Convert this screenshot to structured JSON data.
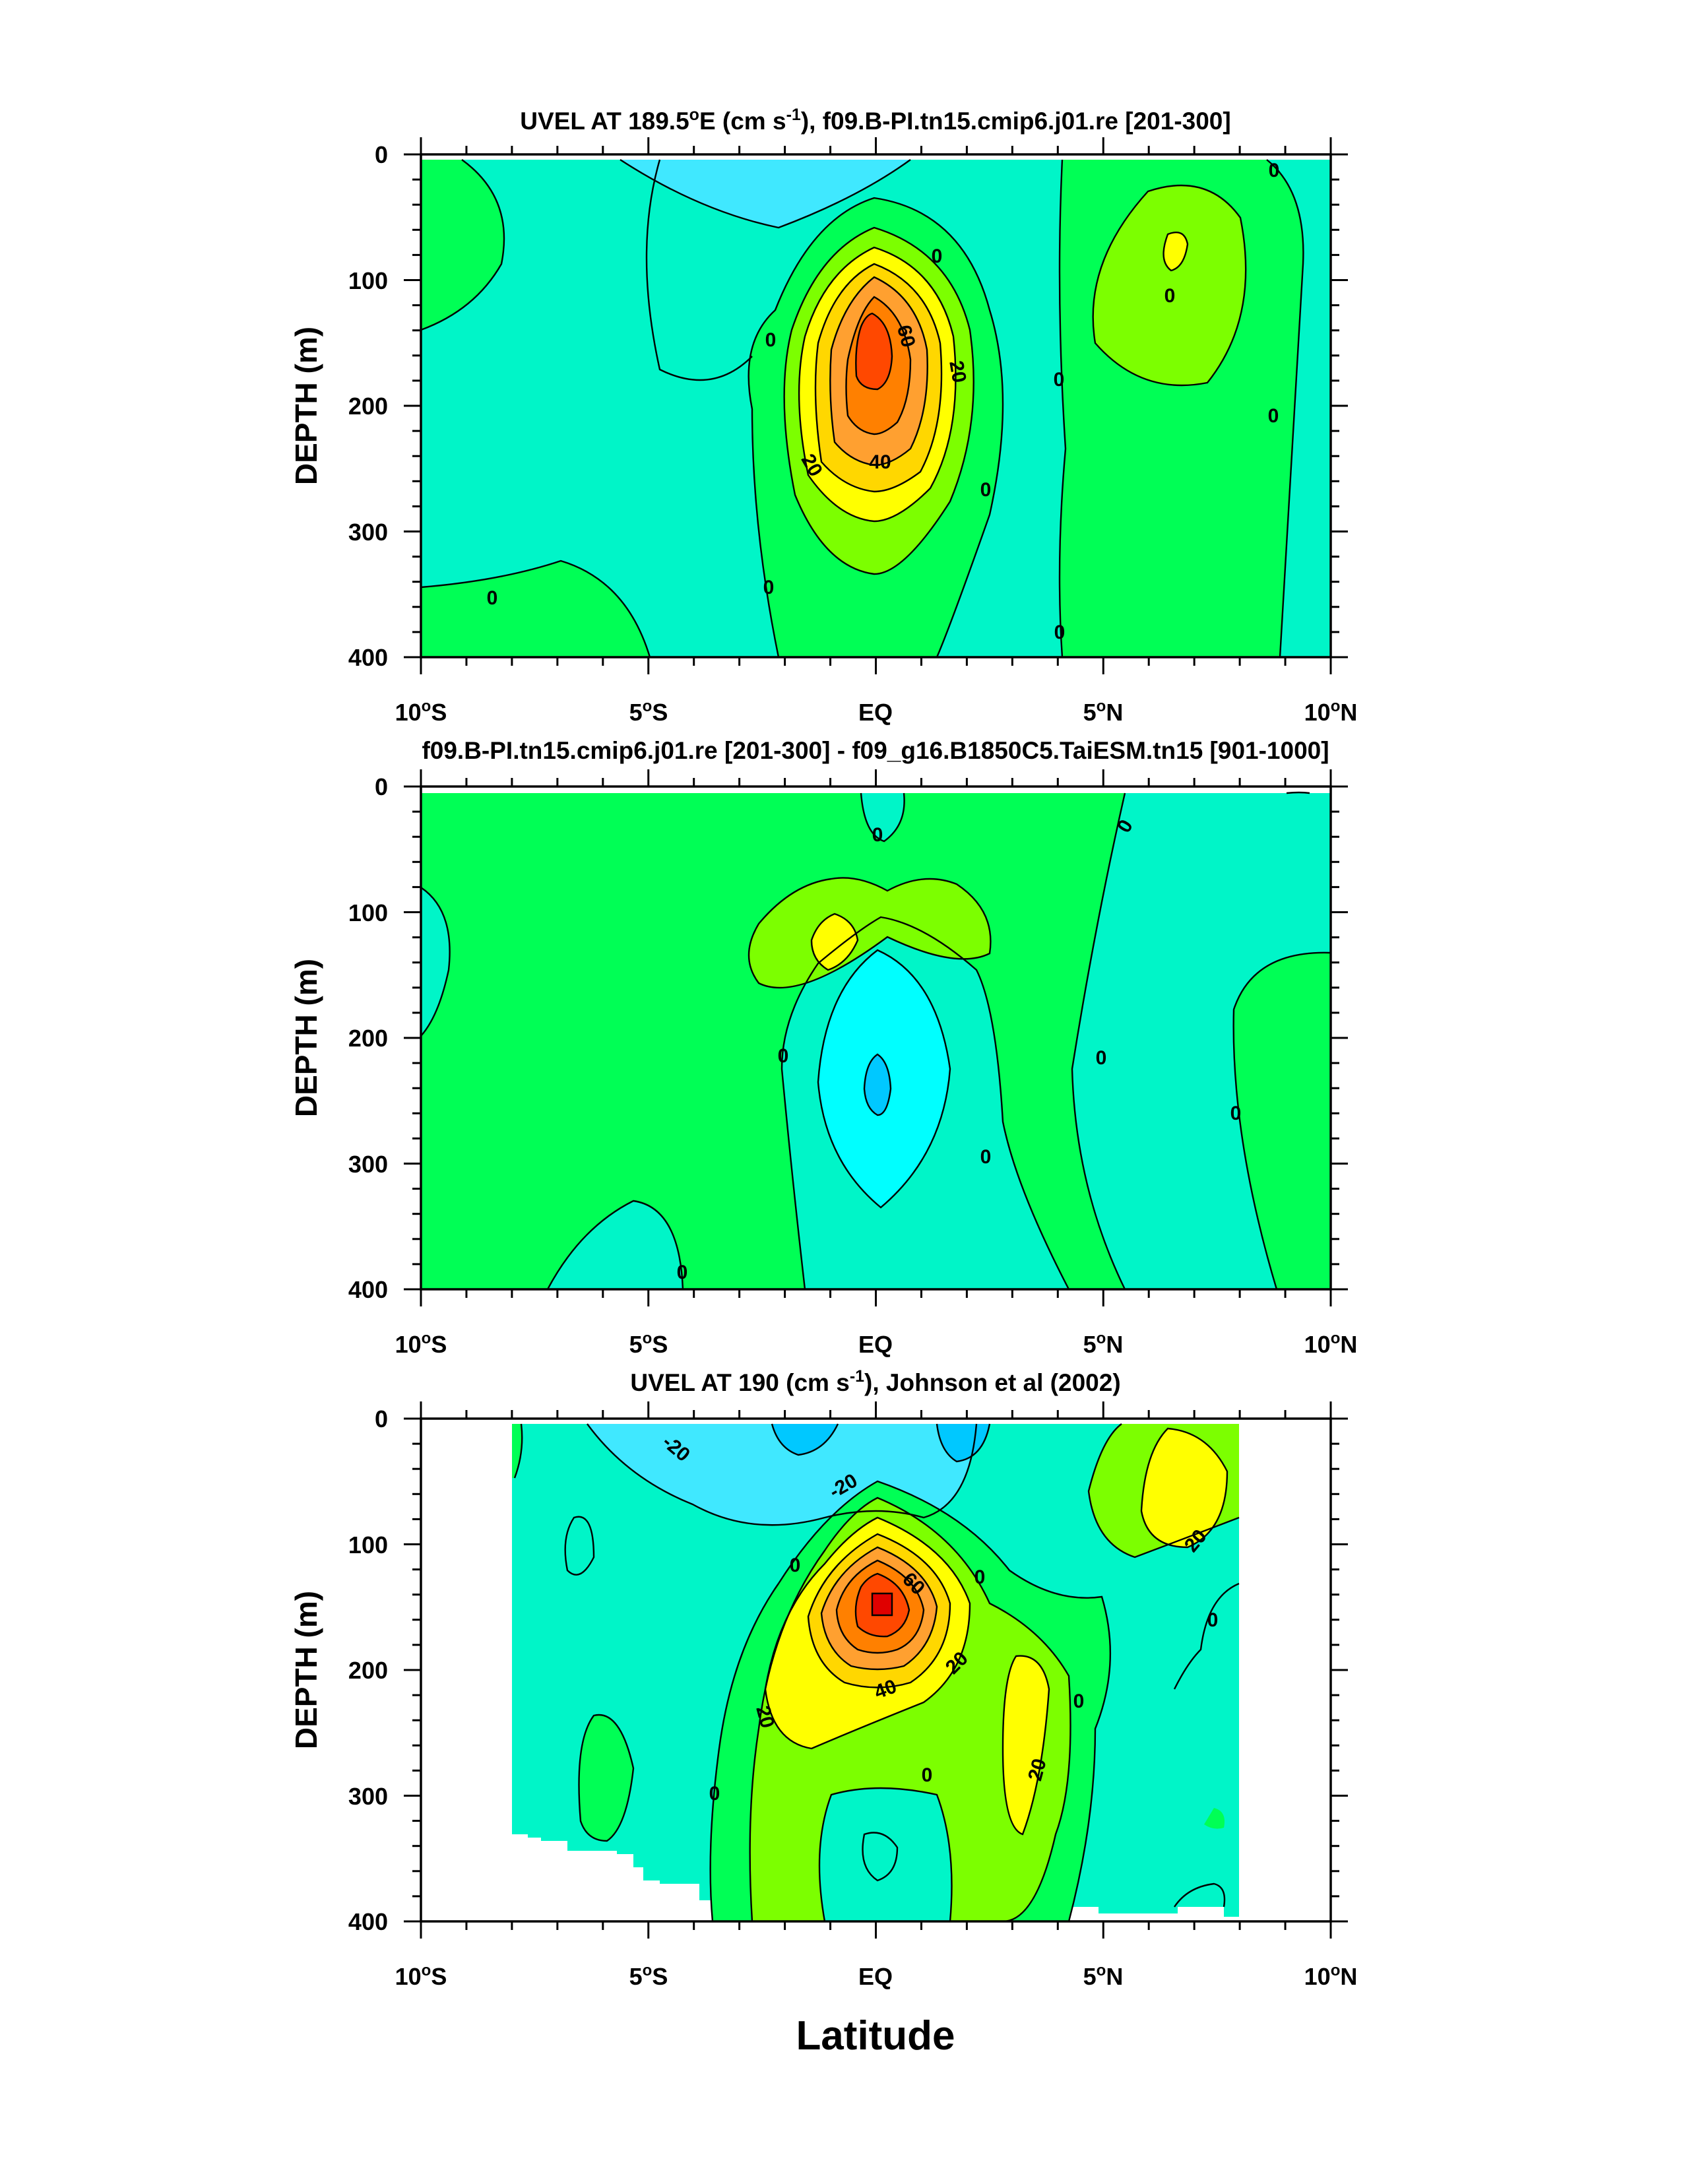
{
  "chart_data": [
    {
      "type": "contour",
      "title_main": "UVEL AT 189.5",
      "title_sup1": "o",
      "title_mid": "E (cm s",
      "title_sup2": "-1",
      "title_end": "), f09.B-PI.tn15.cmip6.j01.re [201-300]",
      "ylabel": "DEPTH (m)",
      "xlabel": "",
      "xlim": [
        -10,
        10
      ],
      "ylim": [
        400,
        0
      ],
      "yticks": [
        "0",
        "100",
        "200",
        "300",
        "400"
      ],
      "xticks": [
        {
          "main": "10",
          "sup": "o",
          "tail": "S"
        },
        {
          "main": "5",
          "sup": "o",
          "tail": "S"
        },
        {
          "main": "EQ",
          "sup": "",
          "tail": ""
        },
        {
          "main": "5",
          "sup": "o",
          "tail": "N"
        },
        {
          "main": "10",
          "sup": "o",
          "tail": "N"
        }
      ],
      "contour_interval": 10,
      "contour_labels": [
        "0",
        "0",
        "0",
        "0",
        "0",
        "0",
        "0",
        "0",
        "0",
        "0",
        "60",
        "20",
        "20",
        "40"
      ],
      "jet_core": {
        "latitude": 0,
        "depth": 160,
        "max_value": 70
      }
    },
    {
      "type": "contour",
      "title": "f09.B-PI.tn15.cmip6.j01.re [201-300] - f09_g16.B1850C5.TaiESM.tn15 [901-1000]",
      "ylabel": "DEPTH (m)",
      "xlabel": "",
      "xlim": [
        -10,
        10
      ],
      "ylim": [
        400,
        0
      ],
      "yticks": [
        "0",
        "100",
        "200",
        "300",
        "400"
      ],
      "xticks": [
        {
          "main": "10",
          "sup": "o",
          "tail": "S"
        },
        {
          "main": "5",
          "sup": "o",
          "tail": "S"
        },
        {
          "main": "EQ",
          "sup": "",
          "tail": ""
        },
        {
          "main": "5",
          "sup": "o",
          "tail": "N"
        },
        {
          "main": "10",
          "sup": "o",
          "tail": "N"
        }
      ],
      "contour_labels": [
        "0",
        "0",
        "0",
        "0",
        "0",
        "0",
        "0"
      ]
    },
    {
      "type": "contour",
      "title_main": "UVEL AT 190 (cm s",
      "title_sup": "-1",
      "title_end": "), Johnson et al (2002)",
      "ylabel": "DEPTH (m)",
      "xlabel": "Latitude",
      "xlim": [
        -10,
        10
      ],
      "ylim": [
        400,
        0
      ],
      "yticks": [
        "0",
        "100",
        "200",
        "300",
        "400"
      ],
      "xticks": [
        {
          "main": "10",
          "sup": "o",
          "tail": "S"
        },
        {
          "main": "5",
          "sup": "o",
          "tail": "S"
        },
        {
          "main": "EQ",
          "sup": "",
          "tail": ""
        },
        {
          "main": "5",
          "sup": "o",
          "tail": "N"
        },
        {
          "main": "10",
          "sup": "o",
          "tail": "N"
        }
      ],
      "data_coverage_lat": [
        -8,
        8
      ],
      "contour_interval": 10,
      "contour_labels": [
        "-20",
        "-20",
        "0",
        "0",
        "0",
        "0",
        "0",
        "0",
        "60",
        "20",
        "20",
        "40",
        "20",
        "20"
      ],
      "jet_core": {
        "latitude": 0,
        "depth": 150,
        "max_value": 80
      }
    }
  ],
  "colors": {
    "c_n30": "#00c8ff",
    "c_n20": "#00ffff",
    "c_n10": "#40e8ff",
    "c_0": "#00f5c8",
    "c_10": "#00ff55",
    "c_20": "#7cff00",
    "c_30": "#ffff00",
    "c_40": "#ffd700",
    "c_50": "#ffa030",
    "c_60": "#ff8000",
    "c_70": "#ff4800",
    "c_80": "#e00000"
  }
}
